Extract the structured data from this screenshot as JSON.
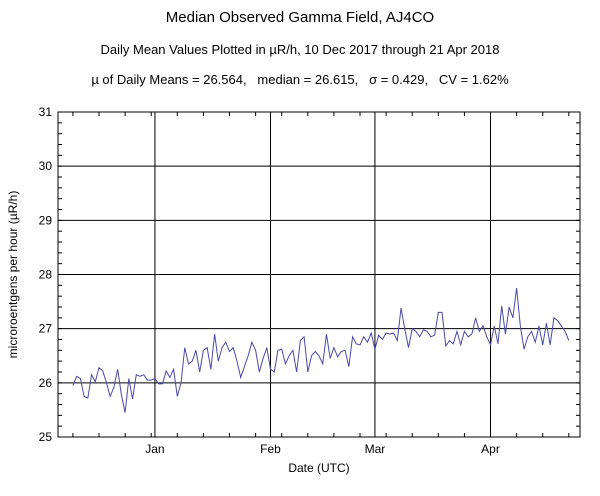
{
  "chart_data": {
    "type": "line",
    "title": "Median Observed Gamma Field, AJ4CO",
    "subtitle": "Daily Mean Values Plotted in µR/h, 10 Dec 2017 through 21 Apr 2018",
    "stats_line": "µ of Daily Means = 26.564,   median = 26.615,   σ = 0.429,   CV = 1.62%",
    "xlabel": "Date (UTC)",
    "ylabel": "microroentgens per hour (µR/h)",
    "x_start": "2017-12-10",
    "x_end": "2018-04-21",
    "xlim": [
      "2017-12-06",
      "2018-04-25"
    ],
    "ylim": [
      25,
      31
    ],
    "y_ticks": [
      25,
      26,
      27,
      28,
      29,
      30,
      31
    ],
    "x_ticks": [
      {
        "label": "Jan",
        "date": "2018-01-01"
      },
      {
        "label": "Feb",
        "date": "2018-02-01"
      },
      {
        "label": "Mar",
        "date": "2018-03-01"
      },
      {
        "label": "Apr",
        "date": "2018-04-01"
      }
    ],
    "grid": true,
    "line_color": "#4a4aa8",
    "series": [
      {
        "values": [
          25.95,
          26.12,
          26.08,
          25.75,
          25.72,
          26.15,
          26.02,
          26.28,
          26.22,
          26.0,
          25.75,
          25.92,
          26.25,
          25.78,
          25.45,
          26.08,
          25.7,
          26.15,
          26.12,
          26.15,
          26.05,
          26.05,
          26.08,
          25.98,
          25.98,
          26.22,
          26.1,
          26.25,
          25.75,
          26.0,
          26.65,
          26.35,
          26.4,
          26.6,
          26.2,
          26.6,
          26.65,
          26.25,
          26.9,
          26.4,
          26.65,
          26.75,
          26.58,
          26.65,
          26.4,
          26.1,
          26.3,
          26.5,
          26.75,
          26.6,
          26.2,
          26.45,
          26.65,
          26.25,
          26.2,
          26.6,
          26.62,
          26.35,
          26.5,
          26.6,
          26.2,
          26.78,
          26.85,
          26.2,
          26.5,
          26.58,
          26.5,
          26.35,
          26.9,
          26.45,
          26.65,
          26.48,
          26.58,
          26.6,
          26.3,
          26.85,
          26.72,
          26.7,
          26.85,
          26.75,
          26.92,
          26.62,
          26.88,
          26.8,
          26.92,
          26.9,
          26.92,
          26.78,
          27.38,
          27.0,
          26.65,
          27.0,
          26.95,
          26.85,
          26.98,
          26.95,
          26.85,
          26.88,
          27.3,
          27.3,
          26.68,
          26.78,
          26.72,
          26.95,
          26.7,
          26.95,
          26.85,
          26.9,
          27.2,
          26.95,
          27.05,
          26.85,
          26.7,
          27.05,
          26.72,
          27.42,
          26.9,
          27.4,
          27.2,
          27.75,
          27.05,
          26.62,
          26.85,
          26.95,
          26.75,
          27.05,
          26.7,
          27.1,
          26.7,
          27.2,
          27.15,
          27.05,
          26.95,
          26.78
        ]
      }
    ]
  }
}
